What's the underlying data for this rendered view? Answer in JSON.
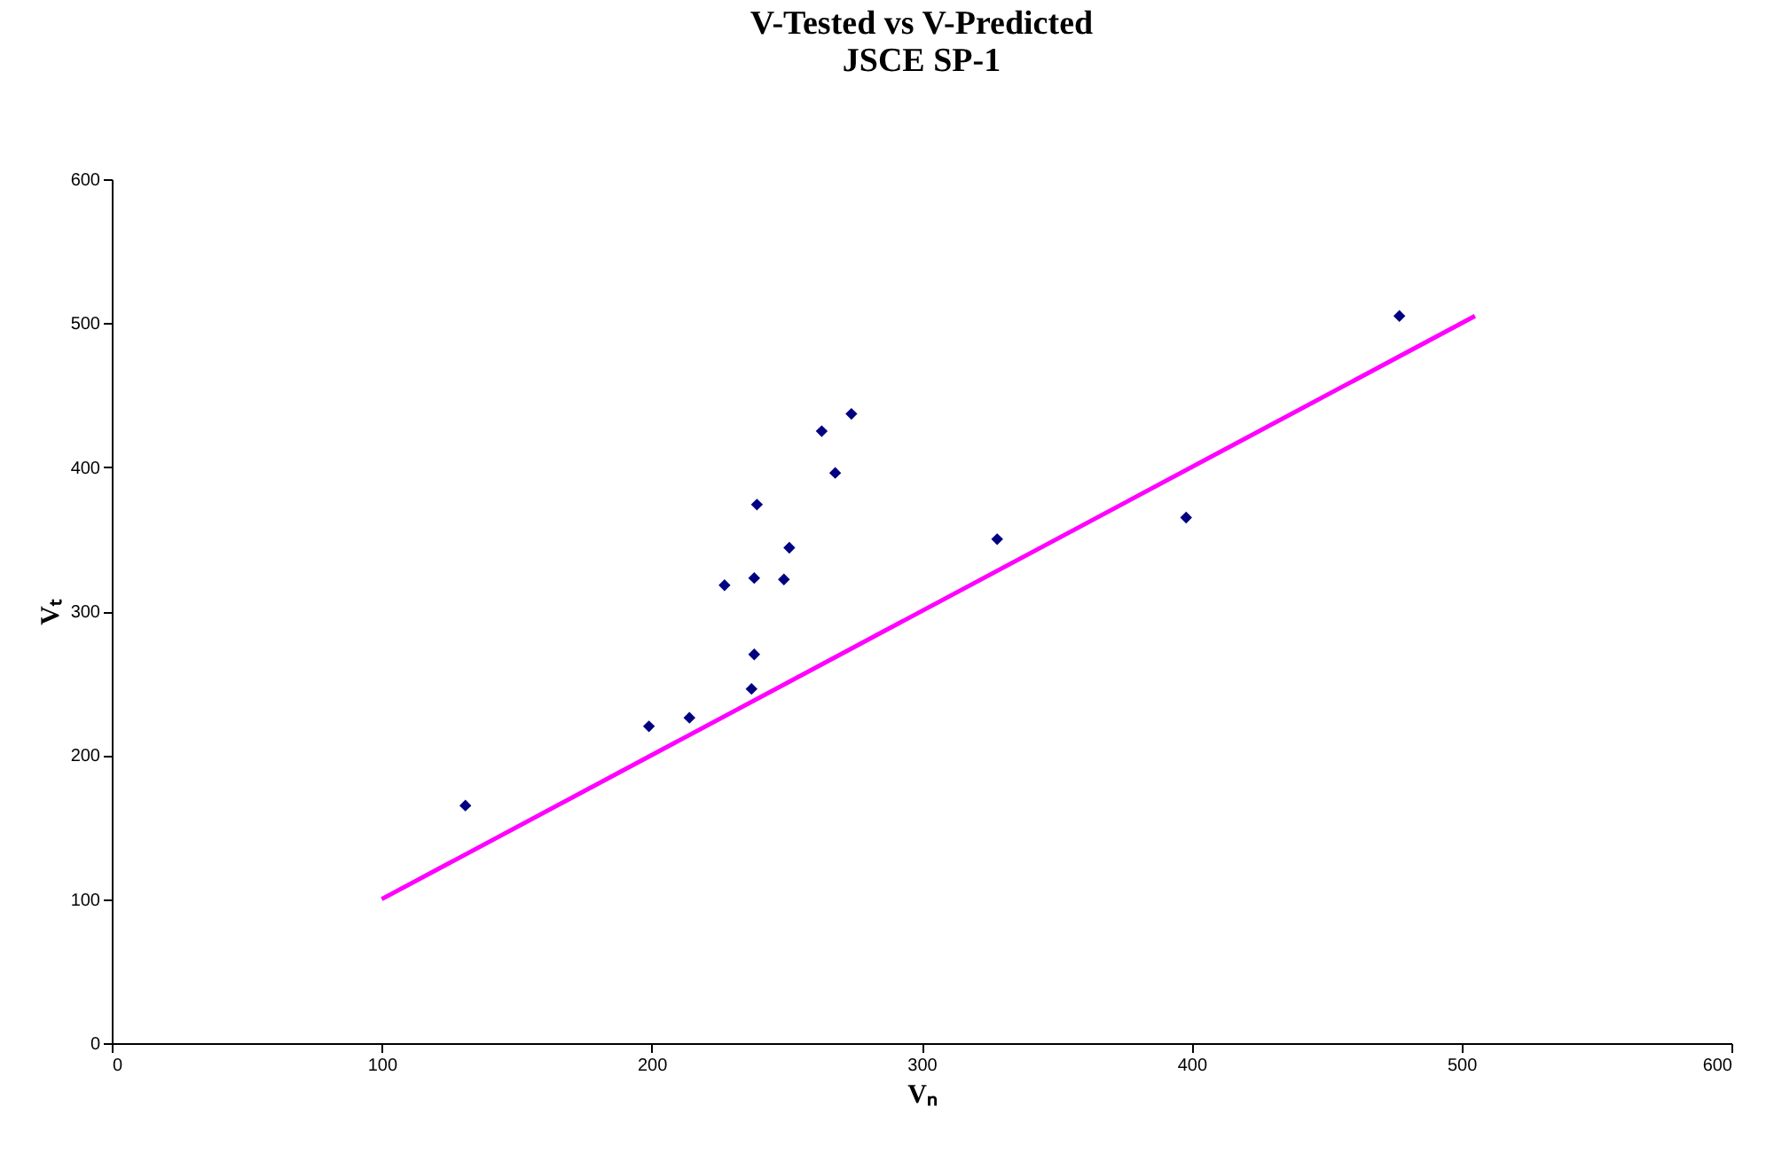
{
  "chart_data": {
    "type": "scatter",
    "title": "V-Tested vs V-Predicted",
    "subtitle": "JSCE SP-1",
    "xlabel": "Vₙ",
    "ylabel": "Vₜ",
    "xlim": [
      0,
      600
    ],
    "xticks": [
      0,
      100,
      200,
      300,
      400,
      500,
      600
    ],
    "ylim": [
      0,
      600
    ],
    "yticks": [
      0,
      100,
      200,
      300,
      400,
      500,
      600
    ],
    "grid": false,
    "marker": "diamond",
    "series": [
      {
        "color": "#000080",
        "x": [
          131,
          199,
          214,
          227,
          238,
          239,
          238,
          237,
          249,
          251,
          263,
          268,
          274,
          328,
          398,
          477
        ],
        "values": [
          165,
          220,
          226,
          318,
          323,
          374,
          270,
          246,
          322,
          344,
          425,
          396,
          437,
          350,
          365,
          505
        ]
      },
      {
        "type": "line",
        "color": "#ff00ff",
        "marker": "none",
        "line_style": "solid",
        "x": [
          100,
          505
        ],
        "values": [
          100,
          505
        ]
      }
    ]
  }
}
